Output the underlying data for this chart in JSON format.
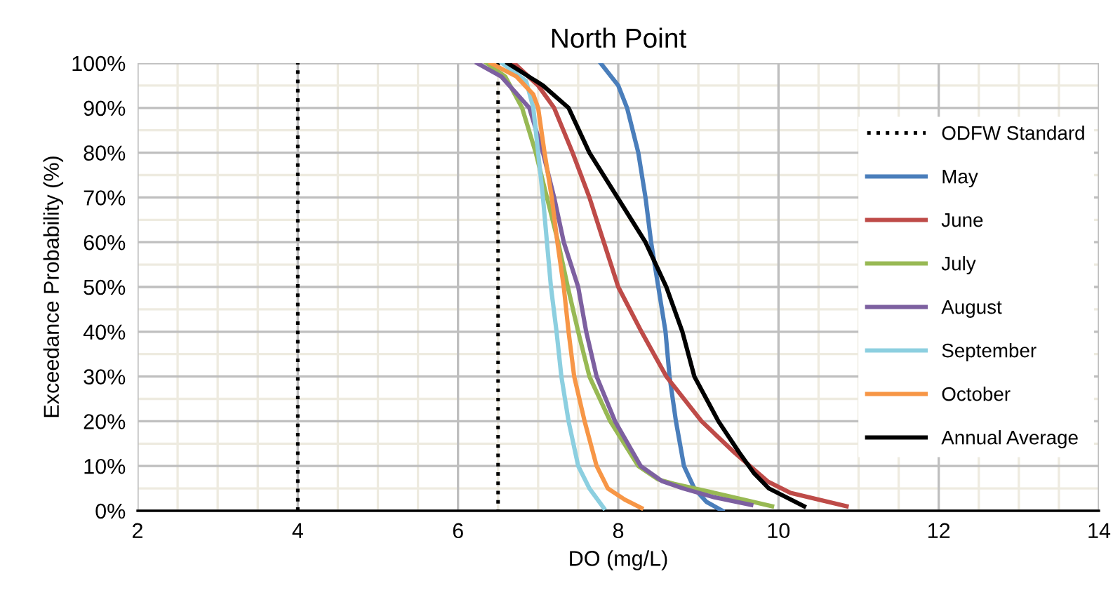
{
  "chart_data": {
    "type": "line",
    "title": "North Point",
    "xlabel": "DO (mg/L)",
    "ylabel": "Exceedance Probability (%)",
    "xlim": [
      2,
      14
    ],
    "xticks": [
      2,
      4,
      6,
      8,
      10,
      12,
      14
    ],
    "ylim": [
      0,
      100
    ],
    "yticks": [
      {
        "value": 0,
        "label": "0%"
      },
      {
        "value": 10,
        "label": "10%"
      },
      {
        "value": 20,
        "label": "20%"
      },
      {
        "value": 30,
        "label": "30%"
      },
      {
        "value": 40,
        "label": "40%"
      },
      {
        "value": 50,
        "label": "50%"
      },
      {
        "value": 60,
        "label": "60%"
      },
      {
        "value": 70,
        "label": "70%"
      },
      {
        "value": 80,
        "label": "80%"
      },
      {
        "value": 90,
        "label": "90%"
      },
      {
        "value": 100,
        "label": "100%"
      }
    ],
    "grid": true,
    "legend": "right",
    "marker": "none",
    "series": [
      {
        "name": "ODFW Standard",
        "color": "#000000",
        "line_style": "dotted",
        "x": [
          4,
          4,
          null,
          6.5,
          6.5
        ],
        "values": [
          0,
          100,
          null,
          100,
          0
        ]
      },
      {
        "name": "May",
        "color": "#4a7ebb",
        "x": [
          7.78,
          8.0,
          8.11,
          8.25,
          8.34,
          8.41,
          8.5,
          8.59,
          8.64,
          8.72,
          8.82,
          8.95,
          9.1,
          9.3
        ],
        "values": [
          100,
          95,
          90,
          80,
          70,
          60,
          50,
          40,
          30,
          20,
          10,
          5,
          2,
          0
        ]
      },
      {
        "name": "June",
        "color": "#be4b48",
        "x": [
          6.7,
          7.0,
          7.2,
          7.43,
          7.64,
          7.82,
          8.0,
          8.29,
          8.6,
          9.04,
          9.45,
          9.87,
          10.15,
          10.85
        ],
        "values": [
          100,
          95,
          90,
          80,
          70,
          60,
          50,
          40,
          30,
          20,
          13,
          6.5,
          4,
          1
        ]
      },
      {
        "name": "July",
        "color": "#98b954",
        "x": [
          6.36,
          6.59,
          6.8,
          6.97,
          7.11,
          7.25,
          7.37,
          7.5,
          7.64,
          7.9,
          8.25,
          8.5,
          8.7,
          9.2,
          9.92
        ],
        "values": [
          100,
          97,
          90,
          80,
          70,
          60,
          50,
          40,
          30,
          20,
          10,
          7,
          6,
          4,
          1
        ]
      },
      {
        "name": "August",
        "color": "#7d60a0",
        "x": [
          6.24,
          6.54,
          6.89,
          7.06,
          7.2,
          7.32,
          7.5,
          7.6,
          7.73,
          7.96,
          8.28,
          8.55,
          8.81,
          9.2,
          9.66
        ],
        "values": [
          100,
          97,
          90,
          80,
          70,
          60,
          50,
          40,
          30,
          20,
          10,
          6.6,
          5,
          3,
          1.3
        ]
      },
      {
        "name": "September",
        "color": "#8ccfe0",
        "x": [
          6.55,
          6.85,
          6.94,
          7.0,
          7.06,
          7.11,
          7.16,
          7.23,
          7.29,
          7.38,
          7.5,
          7.64,
          7.82
        ],
        "values": [
          100,
          96,
          90,
          80,
          70,
          60,
          50,
          40,
          30,
          20,
          10,
          5,
          0.6
        ]
      },
      {
        "name": "October",
        "color": "#f79646",
        "x": [
          6.41,
          6.73,
          6.94,
          7.0,
          7.08,
          7.17,
          7.24,
          7.32,
          7.38,
          7.45,
          7.58,
          7.73,
          7.87,
          8.08,
          8.29
        ],
        "values": [
          100,
          97,
          93,
          90,
          80,
          70,
          60,
          50,
          40,
          30,
          20,
          10,
          5,
          2.5,
          0.6
        ]
      },
      {
        "name": "Annual Average",
        "color": "#000000",
        "x": [
          6.62,
          7.06,
          7.38,
          7.64,
          7.99,
          8.34,
          8.6,
          8.8,
          8.95,
          9.25,
          9.51,
          9.69,
          9.88,
          10.32
        ],
        "values": [
          100,
          95,
          90,
          80,
          70,
          60,
          50,
          40,
          30,
          20,
          13,
          8.5,
          5,
          1
        ]
      }
    ]
  }
}
